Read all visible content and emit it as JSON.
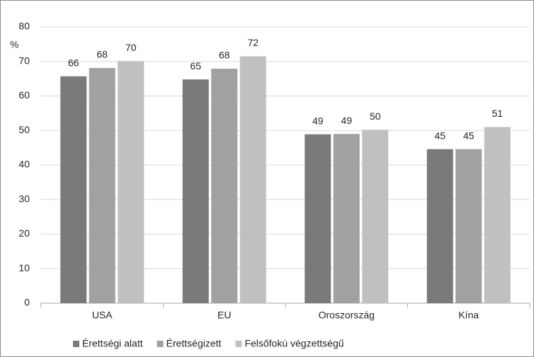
{
  "chart_data": {
    "type": "bar",
    "y_label": "%",
    "categories": [
      "USA",
      "EU",
      "Oroszország",
      "Kína"
    ],
    "series": [
      {
        "name": "Érettségi alatt",
        "color": "#797a7c",
        "values": [
          65.7,
          64.8,
          48.9,
          44.6
        ],
        "value_labels": [
          "66",
          "65",
          "49",
          "45"
        ]
      },
      {
        "name": "Érettségizett",
        "color": "#a0a1a3",
        "values": [
          68.1,
          67.9,
          49.0,
          44.6
        ],
        "value_labels": [
          "68",
          "68",
          "49",
          "45"
        ]
      },
      {
        "name": "Felsőfokú végzettségű",
        "color": "#bfc0c2",
        "values": [
          70.1,
          71.5,
          50.2,
          51.0
        ],
        "value_labels": [
          "70",
          "72",
          "50",
          "51"
        ]
      }
    ],
    "ylim": [
      0,
      80
    ],
    "yticks": [
      0,
      10,
      20,
      30,
      40,
      50,
      60,
      70,
      80
    ],
    "grid": true,
    "legend": "bottom"
  }
}
